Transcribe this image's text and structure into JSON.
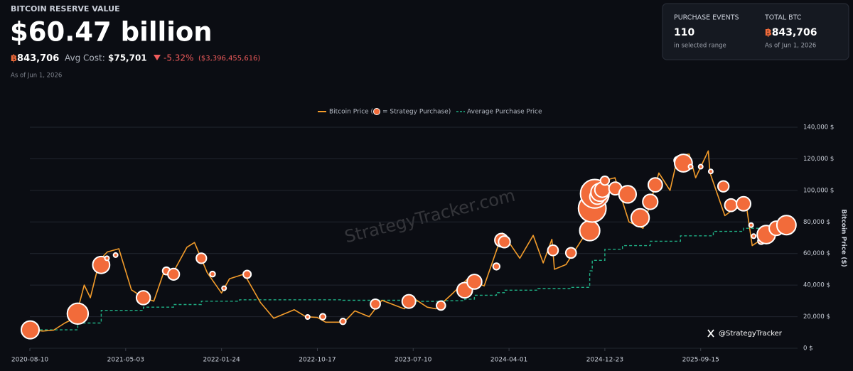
{
  "header": {
    "title": "BITCOIN RESERVE VALUE",
    "value": "$60.47 billion",
    "btc_symbol": "฿",
    "btc": "843,706",
    "avg_cost_label": "Avg Cost:",
    "avg_cost": "$75,701",
    "change": "-5.32%",
    "change_amount": "($3,396,455,616)",
    "as_of": "As of Jun 1, 2026"
  },
  "stats": [
    {
      "label": "PURCHASE EVENTS",
      "value": "110",
      "note": "in selected range"
    },
    {
      "label": "TOTAL BTC",
      "symbol": "฿",
      "value": "843,706",
      "note": "As of Jun 1, 2026"
    }
  ],
  "chart_data": {
    "type": "line",
    "y_label": "Bitcoin Price ($)",
    "watermark": "StrategyTracker.com",
    "attribution": "@StrategyTracker",
    "xlim": [
      "2020-08-10",
      "2026-06-01"
    ],
    "xticks": [
      "2020-08-10",
      "2021-05-03",
      "2022-01-24",
      "2022-10-17",
      "2023-07-10",
      "2024-04-01",
      "2024-12-23",
      "2025-09-15"
    ],
    "ylim": [
      0,
      140000
    ],
    "yticks": [
      {
        "value": 0,
        "label": "0 $"
      },
      {
        "value": 20000,
        "label": "20,000 $"
      },
      {
        "value": 40000,
        "label": "40,000 $"
      },
      {
        "value": 60000,
        "label": "60,000 $"
      },
      {
        "value": 80000,
        "label": "80,000 $"
      },
      {
        "value": 100000,
        "label": "100,000 $"
      },
      {
        "value": 120000,
        "label": "120,000 $"
      },
      {
        "value": 140000,
        "label": "140,000 $"
      }
    ],
    "grid": true,
    "series": [
      {
        "name": "Bitcoin Price (",
        "type": "line",
        "color": "#f39c2b",
        "x": [
          "2020-08-10",
          "2020-09-15",
          "2020-10-15",
          "2020-11-15",
          "2020-12-15",
          "2021-01-08",
          "2021-01-25",
          "2021-02-20",
          "2021-03-13",
          "2021-04-14",
          "2021-05-19",
          "2021-06-22",
          "2021-07-20",
          "2021-08-15",
          "2021-09-07",
          "2021-10-20",
          "2021-11-10",
          "2021-12-15",
          "2022-01-24",
          "2022-02-15",
          "2022-03-28",
          "2022-05-12",
          "2022-06-18",
          "2022-08-14",
          "2022-09-15",
          "2022-10-17",
          "2022-11-09",
          "2022-12-30",
          "2023-01-29",
          "2023-03-10",
          "2023-04-14",
          "2023-06-15",
          "2023-07-13",
          "2023-08-18",
          "2023-09-11",
          "2023-10-24",
          "2023-12-08",
          "2024-01-23",
          "2024-03-14",
          "2024-05-01",
          "2024-06-07",
          "2024-07-05",
          "2024-07-29",
          "2024-08-05",
          "2024-09-06",
          "2024-10-29",
          "2024-11-13",
          "2024-12-17",
          "2025-01-20",
          "2025-02-28",
          "2025-04-08",
          "2025-05-22",
          "2025-06-22",
          "2025-07-14",
          "2025-08-14",
          "2025-09-01",
          "2025-10-06",
          "2025-10-11",
          "2025-11-21",
          "2025-12-15",
          "2026-01-20",
          "2026-02-05",
          "2026-03-10",
          "2026-04-15",
          "2026-06-01"
        ],
        "values": [
          11800,
          10900,
          11500,
          16000,
          19400,
          40000,
          32000,
          56000,
          61000,
          63000,
          37000,
          32000,
          29800,
          47000,
          46000,
          64000,
          67000,
          48000,
          35000,
          44000,
          47000,
          29000,
          19000,
          24400,
          20000,
          19500,
          16500,
          16500,
          23700,
          20000,
          30400,
          25000,
          31400,
          26000,
          25000,
          34000,
          44000,
          39500,
          73000,
          57000,
          71500,
          54000,
          69000,
          50000,
          53000,
          72000,
          90000,
          106000,
          108000,
          80000,
          76000,
          111000,
          100000,
          122000,
          123000,
          108000,
          125000,
          111000,
          84000,
          88000,
          90000,
          65000,
          70000,
          74000,
          77000
        ]
      },
      {
        "name": "= Strategy Purchase)",
        "type": "bubble",
        "color": "#f26b3a",
        "x": [
          "2020-08-11",
          "2020-12-21",
          "2021-02-24",
          "2021-03-12",
          "2021-04-05",
          "2021-06-21",
          "2021-08-24",
          "2021-09-13",
          "2021-11-29",
          "2021-12-30",
          "2022-01-31",
          "2022-04-05",
          "2022-09-20",
          "2022-11-01",
          "2022-12-27",
          "2023-03-27",
          "2023-06-28",
          "2023-09-25",
          "2023-11-30",
          "2023-12-27",
          "2024-02-26",
          "2024-03-11",
          "2024-03-19",
          "2024-08-01",
          "2024-09-20",
          "2024-11-11",
          "2024-11-18",
          "2024-11-25",
          "2024-12-02",
          "2024-12-09",
          "2024-12-16",
          "2024-12-23",
          "2025-01-21",
          "2025-02-24",
          "2025-03-31",
          "2025-04-28",
          "2025-05-12",
          "2025-07-14",
          "2025-07-29",
          "2025-08-18",
          "2025-09-15",
          "2025-10-13",
          "2025-11-17",
          "2025-12-08",
          "2026-01-05",
          "2026-01-12",
          "2026-02-02",
          "2026-02-09",
          "2026-03-02",
          "2026-03-16",
          "2026-04-13",
          "2026-05-11"
        ],
        "values": [
          11654,
          21925,
          52765,
          57000,
          59000,
          32000,
          49000,
          46875,
          57000,
          47000,
          38000,
          46800,
          19800,
          20000,
          17000,
          28000,
          29668,
          27053,
          36785,
          42110,
          51813,
          68477,
          67382,
          62000,
          60408,
          74463,
          88627,
          97862,
          95976,
          98783,
          100386,
          106137,
          101191,
          97514,
          82618,
          92737,
          103498,
          118940,
          117256,
          115019,
          115000,
          112000,
          102557,
          90615,
          90391,
          91519,
          78000,
          71000,
          68000,
          72000,
          76000,
          78000
        ],
        "sizes": [
          21454,
          29646,
          19452,
          262,
          253,
          13005,
          3907,
          8957,
          7002,
          1914,
          660,
          4167,
          301,
          2395,
          2395,
          6455,
          12333,
          5445,
          16130,
          14620,
          3000,
          12000,
          9245,
          7420,
          7420,
          27200,
          51780,
          55500,
          15400,
          21550,
          15350,
          5262,
          11000,
          20356,
          22048,
          15355,
          13390,
          4225,
          21021,
          430,
          525,
          220,
          8178,
          10624,
          1287,
          13627,
          855,
          1142,
          3015,
          22337,
          13927,
          24869
        ]
      },
      {
        "name": "Average Purchase Price",
        "type": "step",
        "color": "#1fae84",
        "x": [
          "2020-08-10",
          "2020-12-21",
          "2021-02-24",
          "2021-06-21",
          "2021-09-13",
          "2021-11-29",
          "2022-03-15",
          "2022-12-27",
          "2023-06-28",
          "2023-09-25",
          "2023-11-30",
          "2023-12-27",
          "2024-02-26",
          "2024-03-19",
          "2024-06-20",
          "2024-09-20",
          "2024-11-11",
          "2024-11-18",
          "2024-12-23",
          "2025-02-10",
          "2025-04-28",
          "2025-07-21",
          "2025-10-20",
          "2026-01-12",
          "2026-06-01"
        ],
        "values": [
          11650,
          16000,
          24000,
          26000,
          27700,
          29800,
          30700,
          30400,
          29700,
          30100,
          31100,
          33600,
          35200,
          36800,
          37800,
          38600,
          49000,
          55700,
          62700,
          65000,
          67800,
          71200,
          74000,
          76000,
          75701
        ]
      }
    ]
  }
}
